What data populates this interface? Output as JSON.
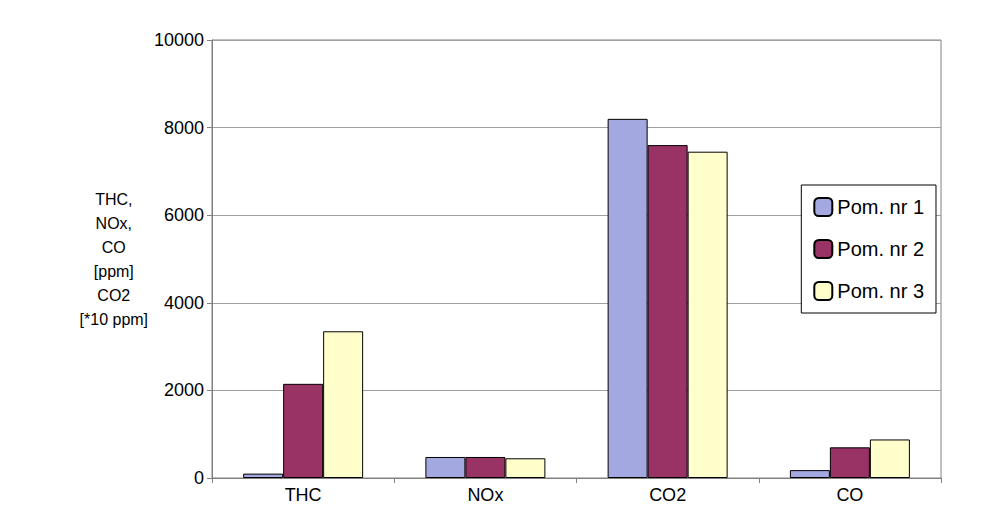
{
  "chart_data": {
    "type": "bar",
    "y_label": "THC,\nNOx,\nCO\n[ppm]\nCO2\n[*10 ppm]",
    "categories": [
      "THC",
      "NOx",
      "CO2",
      "CO"
    ],
    "series": [
      {
        "name": "Pom. nr 1",
        "color": "#a4a8e0",
        "values": [
          100,
          480,
          8200,
          180
        ]
      },
      {
        "name": "Pom. nr 2",
        "color": "#993366",
        "values": [
          2150,
          480,
          7600,
          700
        ]
      },
      {
        "name": "Pom. nr 3",
        "color": "#ffffcc",
        "values": [
          3350,
          450,
          7450,
          880
        ]
      }
    ],
    "ylim": [
      0,
      10000
    ],
    "yticks": [
      0,
      2000,
      4000,
      6000,
      8000,
      10000
    ],
    "grid": true,
    "legend": "right"
  }
}
